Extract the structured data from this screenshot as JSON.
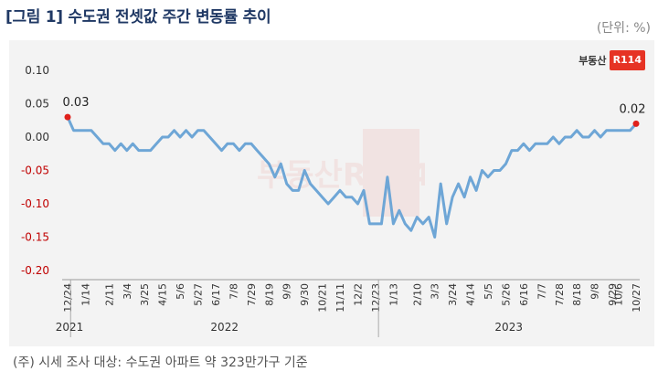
{
  "title": "[그림 1] 수도권 전셋값 주간 변동률 추이",
  "unit_label": "(단위: %)",
  "footnote": "(주) 시세 조사 대상: 수도권 아파트 약 323만가구 기준",
  "brand": {
    "text": "부동산",
    "badge": "R114",
    "watermark": "부동산R114"
  },
  "colors": {
    "title": "#1f3864",
    "line": "#6ea6d6",
    "marker": "#e0211b",
    "negative_tick": "#c00000",
    "plot_bg": "#f3f3f3"
  },
  "chart_data": {
    "type": "line",
    "title": "",
    "xlabel": "",
    "ylabel": "",
    "ylim": [
      -0.2,
      0.1
    ],
    "yticks": [
      0.1,
      0.05,
      0.0,
      -0.05,
      -0.1,
      -0.15,
      -0.2
    ],
    "ytick_labels": [
      "0.10",
      "0.05",
      "0.00",
      "-0.05",
      "-0.10",
      "-0.15",
      "-0.20"
    ],
    "grid": false,
    "x_tick_labels": [
      "12/24",
      "1/14",
      "2/11",
      "3/4",
      "3/25",
      "4/15",
      "5/6",
      "5/27",
      "6/17",
      "7/8",
      "7/29",
      "8/19",
      "9/9",
      "9/30",
      "10/21",
      "11/11",
      "12/2",
      "12/23",
      "1/13",
      "2/10",
      "3/3",
      "3/24",
      "4/14",
      "5/5",
      "5/26",
      "6/16",
      "7/7",
      "7/28",
      "8/18",
      "9/8",
      "9/29",
      "10/6",
      "10/27"
    ],
    "x_tick_index": [
      0,
      3,
      7,
      10,
      13,
      16,
      19,
      22,
      25,
      28,
      31,
      34,
      37,
      40,
      43,
      46,
      49,
      52,
      55,
      59,
      62,
      65,
      68,
      71,
      74,
      77,
      80,
      83,
      86,
      89,
      92,
      93,
      96
    ],
    "year_labels": [
      {
        "label": "2021",
        "start": 0,
        "end": 0
      },
      {
        "label": "2022",
        "start": 1,
        "end": 52
      },
      {
        "label": "2023",
        "start": 53,
        "end": 96
      }
    ],
    "series": [
      {
        "values": [
          0.03,
          0.01,
          0.01,
          0.01,
          0.01,
          0.0,
          -0.01,
          -0.01,
          -0.02,
          -0.01,
          -0.02,
          -0.01,
          -0.02,
          -0.02,
          -0.02,
          -0.01,
          0.0,
          0.0,
          0.01,
          0.0,
          0.01,
          0.0,
          0.01,
          0.01,
          0.0,
          -0.01,
          -0.02,
          -0.01,
          -0.01,
          -0.02,
          -0.01,
          -0.01,
          -0.02,
          -0.03,
          -0.04,
          -0.06,
          -0.04,
          -0.07,
          -0.08,
          -0.08,
          -0.05,
          -0.07,
          -0.08,
          -0.09,
          -0.1,
          -0.09,
          -0.08,
          -0.09,
          -0.09,
          -0.1,
          -0.08,
          -0.13,
          -0.13,
          -0.13,
          -0.06,
          -0.13,
          -0.11,
          -0.13,
          -0.14,
          -0.12,
          -0.13,
          -0.12,
          -0.15,
          -0.07,
          -0.13,
          -0.09,
          -0.07,
          -0.09,
          -0.06,
          -0.08,
          -0.05,
          -0.06,
          -0.05,
          -0.05,
          -0.04,
          -0.02,
          -0.02,
          -0.01,
          -0.02,
          -0.01,
          -0.01,
          -0.01,
          0.0,
          -0.01,
          0.0,
          0.0,
          0.01,
          0.0,
          0.0,
          0.01,
          0.0,
          0.01,
          0.01,
          0.01,
          0.01,
          0.01,
          0.02
        ]
      }
    ],
    "annotations": [
      {
        "index": 0,
        "label": "0.03"
      },
      {
        "index": 96,
        "label": "0.02"
      }
    ]
  }
}
